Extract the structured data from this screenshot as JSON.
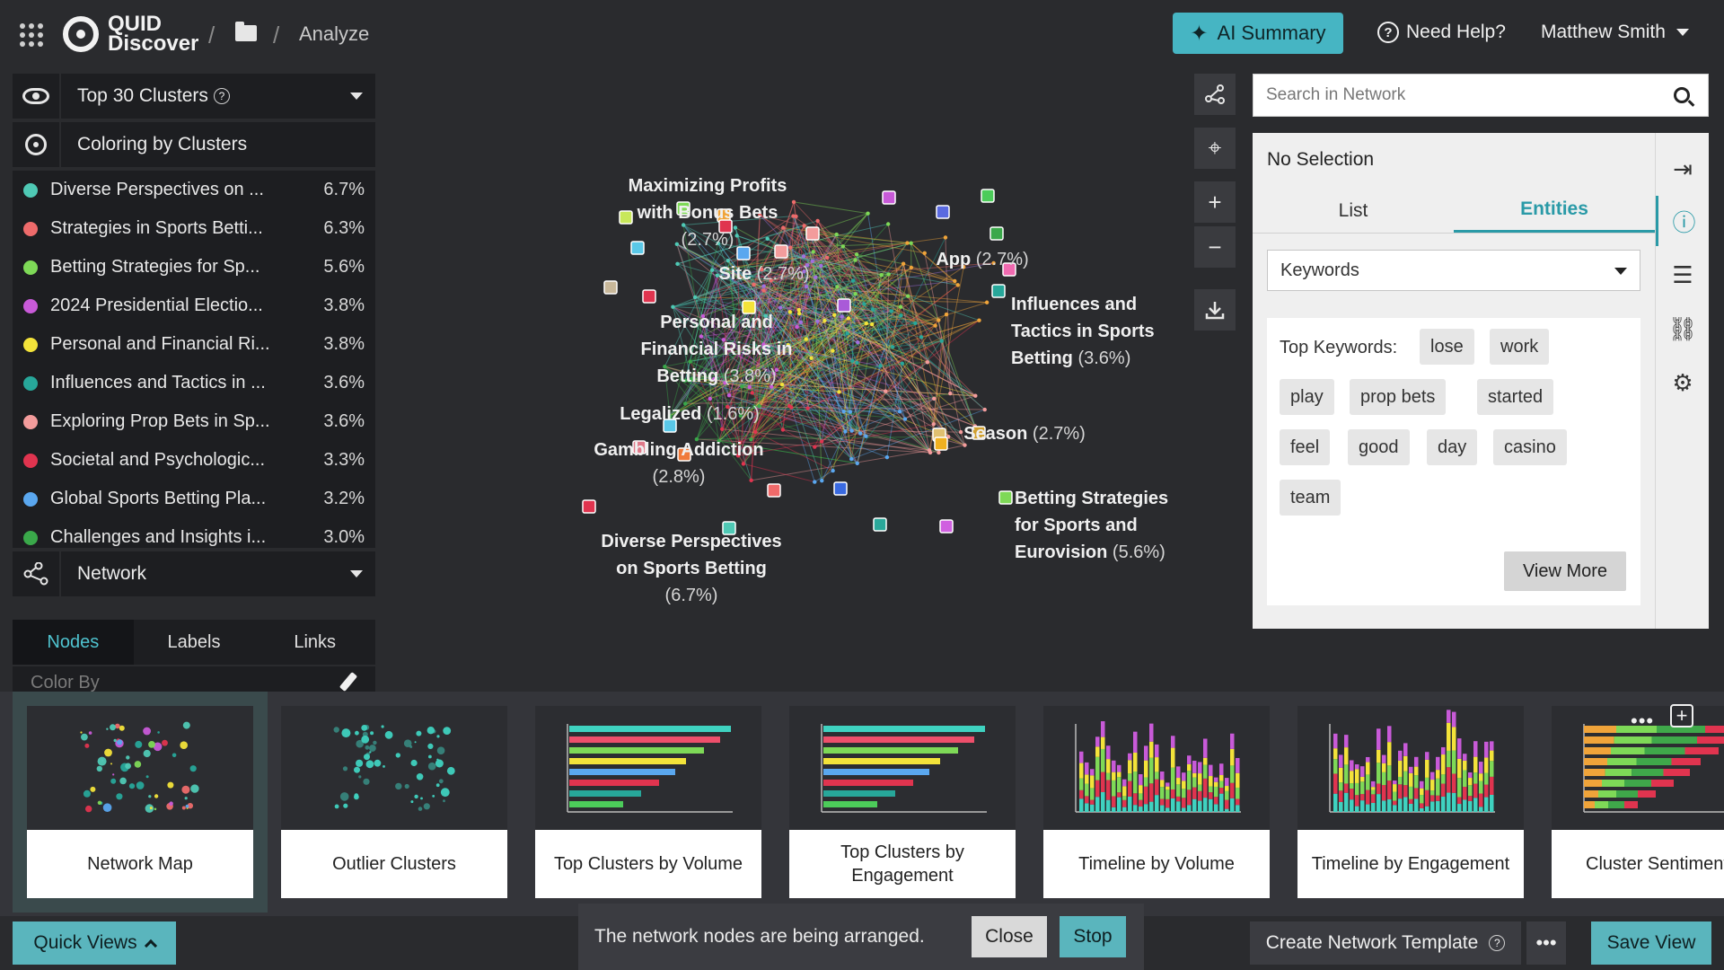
{
  "header": {
    "logo_line1": "QUID",
    "logo_line2": "Discover",
    "breadcrumb_current": "Analyze",
    "ai_summary_label": "AI Summary",
    "help_label": "Need Help?",
    "user_name": "Matthew Smith"
  },
  "left_panel": {
    "clusters_dropdown": "Top 30 Clusters",
    "coloring_label": "Coloring by Clusters",
    "clusters": [
      {
        "name": "Diverse Perspectives on ...",
        "pct": "6.7%",
        "color": "#4fc9b5"
      },
      {
        "name": "Strategies in Sports Betti...",
        "pct": "6.3%",
        "color": "#ee6b6b"
      },
      {
        "name": "Betting Strategies for Sp...",
        "pct": "5.6%",
        "color": "#7ed957"
      },
      {
        "name": "2024 Presidential Electio...",
        "pct": "3.8%",
        "color": "#c85ad8"
      },
      {
        "name": "Personal and Financial Ri...",
        "pct": "3.8%",
        "color": "#f3e33a"
      },
      {
        "name": "Influences and Tactics in ...",
        "pct": "3.6%",
        "color": "#27a79a"
      },
      {
        "name": "Exploring Prop Bets in Sp...",
        "pct": "3.6%",
        "color": "#f39c9c"
      },
      {
        "name": "Societal and Psychologic...",
        "pct": "3.3%",
        "color": "#e0344f"
      },
      {
        "name": "Global Sports Betting Pla...",
        "pct": "3.2%",
        "color": "#5aa7ef"
      },
      {
        "name": "Challenges and Insights i...",
        "pct": "3.0%",
        "color": "#3aa84a"
      }
    ],
    "network_dropdown": "Network",
    "tabs": [
      "Nodes",
      "Labels",
      "Links"
    ],
    "color_by_label": "Color By"
  },
  "network": {
    "labels": [
      {
        "name": "Maximizing Profits\nwith Bonus Bets",
        "pct": "(2.7%)"
      },
      {
        "name": "Site",
        "pct": "(2.7%)"
      },
      {
        "name": "App",
        "pct": "(2.7%)"
      },
      {
        "name": "Influences and\nTactics in Sports\nBetting",
        "pct": "(3.6%)"
      },
      {
        "name": "Personal and\nFinancial Risks in\nBetting",
        "pct": "(3.8%)"
      },
      {
        "name": "Legalized",
        "pct": "(1.6%)"
      },
      {
        "name": "Season",
        "pct": "(2.7%)"
      },
      {
        "name": "Gambling Addiction",
        "pct": "(2.8%)"
      },
      {
        "name": "Betting Strategies\nfor Sports and\nEurovision",
        "pct": "(5.6%)"
      },
      {
        "name": "Diverse Perspectives\non Sports Betting",
        "pct": "(6.7%)"
      }
    ]
  },
  "right_panel": {
    "search_placeholder": "Search in Network",
    "selection_title": "No Selection",
    "tabs": [
      "List",
      "Entities"
    ],
    "keywords_select": "Keywords",
    "top_keywords_label": "Top Keywords:",
    "keywords": [
      "lose",
      "work",
      "play",
      "prop bets",
      "started",
      "feel",
      "good",
      "day",
      "casino",
      "team"
    ],
    "view_more_label": "View More"
  },
  "quick_views": [
    {
      "label": "Network Map"
    },
    {
      "label": "Outlier Clusters"
    },
    {
      "label": "Top Clusters by Volume"
    },
    {
      "label": "Top Clusters by Engagement"
    },
    {
      "label": "Timeline by Volume"
    },
    {
      "label": "Timeline by Engagement"
    },
    {
      "label": "Cluster Sentiment"
    }
  ],
  "bottom": {
    "quick_views_label": "Quick Views",
    "toast_message": "The network nodes are being arranged.",
    "close_label": "Close",
    "stop_label": "Stop",
    "create_template_label": "Create Network Template",
    "save_view_label": "Save View"
  }
}
